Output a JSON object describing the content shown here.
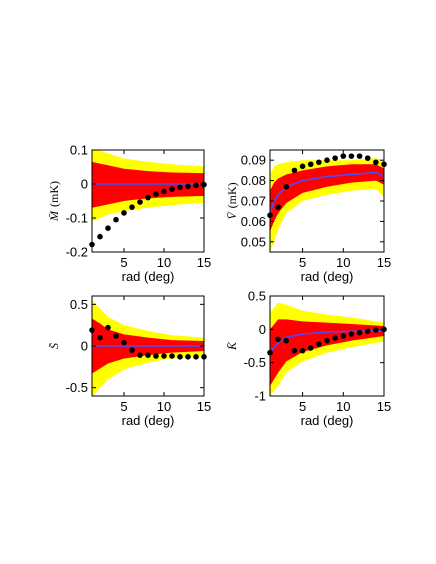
{
  "chart_data": [
    {
      "type": "scatter",
      "panel": "M",
      "ylabel": "M̄",
      "ylabel_unit": "(mK)",
      "xlabel": "rad (deg)",
      "xlim": [
        1,
        15
      ],
      "ylim": [
        -0.2,
        0.1
      ],
      "xticks": [
        5,
        10,
        15
      ],
      "yticks": [
        0.1,
        0,
        -0.1,
        -0.2
      ],
      "ytick_labels": [
        "0.1",
        "0",
        "-0.1",
        "-0.2"
      ],
      "band_x": [
        1,
        2,
        3,
        5,
        8,
        11,
        15
      ],
      "outer_upper": [
        0.1,
        0.098,
        0.09,
        0.075,
        0.065,
        0.058,
        0.052
      ],
      "outer_lower": [
        -0.11,
        -0.1,
        -0.09,
        -0.08,
        -0.07,
        -0.062,
        -0.055
      ],
      "inner_upper": [
        0.065,
        0.06,
        0.055,
        0.045,
        0.038,
        0.034,
        0.032
      ],
      "inner_lower": [
        -0.07,
        -0.065,
        -0.06,
        -0.05,
        -0.042,
        -0.038,
        -0.035
      ],
      "mean": [
        0,
        0,
        0,
        0,
        0,
        0,
        0
      ],
      "points_x": [
        1,
        2,
        3,
        4,
        5,
        6,
        7,
        8,
        9,
        10,
        11,
        12,
        13,
        14,
        15
      ],
      "points_y": [
        -0.178,
        -0.155,
        -0.13,
        -0.105,
        -0.085,
        -0.068,
        -0.053,
        -0.04,
        -0.03,
        -0.022,
        -0.015,
        -0.01,
        -0.007,
        -0.004,
        -0.002
      ]
    },
    {
      "type": "scatter",
      "panel": "V",
      "ylabel": "V̄",
      "ylabel_unit": "(mK)",
      "xlabel": "rad (deg)",
      "xlim": [
        1,
        15
      ],
      "ylim": [
        0.045,
        0.095
      ],
      "xticks": [
        5,
        10,
        15
      ],
      "yticks": [
        0.09,
        0.08,
        0.07,
        0.06,
        0.05
      ],
      "ytick_labels": [
        "0.09",
        "0.08",
        "0.07",
        "0.06",
        "0.05"
      ],
      "band_x": [
        1,
        1.5,
        2,
        3,
        5,
        8,
        11,
        14,
        15
      ],
      "outer_upper": [
        0.083,
        0.087,
        0.088,
        0.089,
        0.09,
        0.09,
        0.09,
        0.091,
        0.09
      ],
      "outer_lower": [
        0.045,
        0.05,
        0.056,
        0.064,
        0.07,
        0.073,
        0.075,
        0.076,
        0.072
      ],
      "inner_upper": [
        0.075,
        0.079,
        0.081,
        0.083,
        0.085,
        0.087,
        0.088,
        0.088,
        0.086
      ],
      "inner_lower": [
        0.055,
        0.06,
        0.064,
        0.069,
        0.074,
        0.077,
        0.079,
        0.08,
        0.078
      ],
      "mean": [
        0.064,
        0.07,
        0.073,
        0.077,
        0.08,
        0.082,
        0.083,
        0.084,
        0.082
      ],
      "points_x": [
        1,
        2,
        3,
        4,
        5,
        6,
        7,
        8,
        9,
        10,
        11,
        12,
        13,
        14,
        15
      ],
      "points_y": [
        0.063,
        0.067,
        0.077,
        0.085,
        0.087,
        0.088,
        0.089,
        0.09,
        0.091,
        0.092,
        0.092,
        0.092,
        0.091,
        0.089,
        0.088
      ]
    },
    {
      "type": "scatter",
      "panel": "S",
      "ylabel": "S̄",
      "ylabel_unit": "",
      "xlabel": "rad (deg)",
      "xlim": [
        1,
        15
      ],
      "ylim": [
        -0.6,
        0.6
      ],
      "xticks": [
        5,
        10,
        15
      ],
      "yticks": [
        0.5,
        0,
        -0.5
      ],
      "ytick_labels": [
        "0.5",
        "0",
        "-0.5"
      ],
      "band_x": [
        1,
        2,
        3,
        5,
        8,
        11,
        15
      ],
      "outer_upper": [
        0.55,
        0.45,
        0.35,
        0.25,
        0.18,
        0.13,
        0.1
      ],
      "outer_lower": [
        -0.62,
        -0.5,
        -0.4,
        -0.28,
        -0.2,
        -0.15,
        -0.12
      ],
      "inner_upper": [
        0.33,
        0.27,
        0.2,
        0.14,
        0.1,
        0.07,
        0.06
      ],
      "inner_lower": [
        -0.33,
        -0.27,
        -0.21,
        -0.15,
        -0.11,
        -0.08,
        -0.06
      ],
      "mean": [
        0,
        0,
        0,
        0,
        0,
        0,
        0
      ],
      "points_x": [
        1,
        2,
        3,
        4,
        5,
        6,
        7,
        8,
        9,
        10,
        11,
        12,
        13,
        14,
        15
      ],
      "points_y": [
        0.19,
        0.1,
        0.22,
        0.12,
        0.04,
        -0.05,
        -0.11,
        -0.11,
        -0.12,
        -0.12,
        -0.12,
        -0.13,
        -0.13,
        -0.13,
        -0.13
      ]
    },
    {
      "type": "scatter",
      "panel": "K",
      "ylabel": "K̄",
      "ylabel_unit": "",
      "xlabel": "rad (deg)",
      "xlim": [
        1,
        15
      ],
      "ylim": [
        -1.0,
        0.5
      ],
      "xticks": [
        5,
        10,
        15
      ],
      "yticks": [
        0.5,
        0,
        -0.5,
        -1
      ],
      "ytick_labels": [
        "0.5",
        "0",
        "-0.5",
        "-1"
      ],
      "band_x": [
        1,
        2,
        3,
        5,
        8,
        11,
        15
      ],
      "outer_upper": [
        0.25,
        0.4,
        0.37,
        0.28,
        0.22,
        0.18,
        0.1
      ],
      "outer_lower": [
        -1.0,
        -0.85,
        -0.65,
        -0.48,
        -0.35,
        -0.27,
        -0.18
      ],
      "inner_upper": [
        0.0,
        0.15,
        0.15,
        0.12,
        0.1,
        0.08,
        0.05
      ],
      "inner_lower": [
        -0.85,
        -0.65,
        -0.48,
        -0.34,
        -0.24,
        -0.17,
        -0.1
      ],
      "mean": [
        -0.35,
        -0.2,
        -0.12,
        -0.07,
        -0.04,
        -0.03,
        -0.02
      ],
      "points_x": [
        1,
        2,
        3,
        4,
        5,
        6,
        7,
        8,
        9,
        10,
        11,
        12,
        13,
        14,
        15
      ],
      "points_y": [
        -0.35,
        -0.15,
        -0.17,
        -0.32,
        -0.32,
        -0.28,
        -0.22,
        -0.17,
        -0.13,
        -0.1,
        -0.07,
        -0.05,
        -0.03,
        -0.01,
        0.0
      ]
    }
  ],
  "colors": {
    "outer_band": "#ffff00",
    "inner_band": "#ff0000",
    "mean_line": "#4b4bff",
    "points": "#000000"
  }
}
